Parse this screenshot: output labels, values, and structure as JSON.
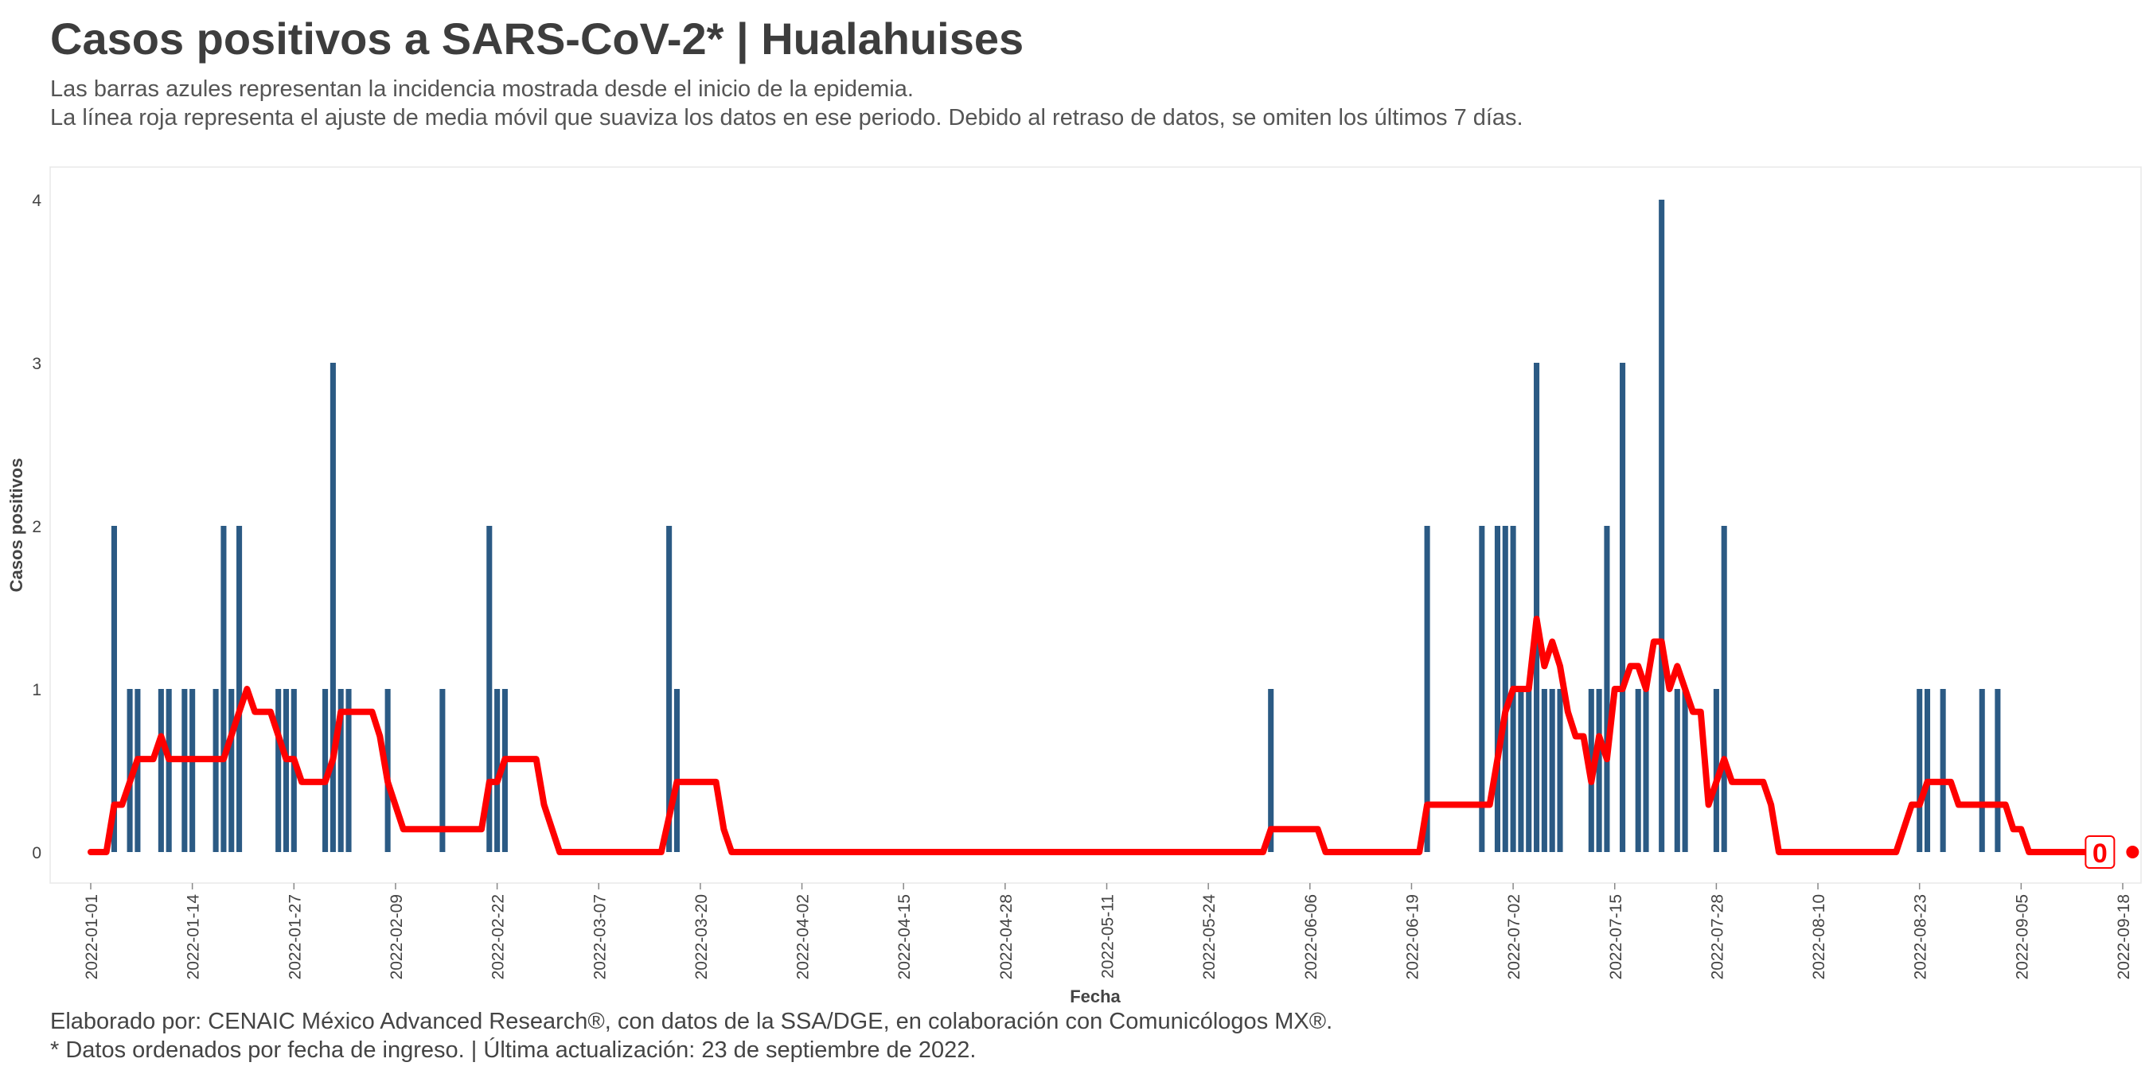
{
  "title": "Casos positivos a SARS-CoV-2* | Hualahuises",
  "subtitle_line1": "Las barras azules representan la incidencia mostrada desde el inicio de la epidemia.",
  "subtitle_line2": "La línea roja representa el ajuste de media móvil que suaviza los datos en ese periodo. Debido al retraso de datos, se omiten los últimos 7 días.",
  "caption_line1": "Elaborado por: CENAIC México Advanced Research®, con datos de la SSA/DGE, en colaboración con Comunicólogos MX®.",
  "caption_line2": "* Datos ordenados por fecha de ingreso. | Última actualización: 23 de septiembre de 2022.",
  "colors": {
    "bar": "#2b5a84",
    "line": "#ff0000",
    "text": "#444444",
    "title": "#3d3d3d"
  },
  "chart_data": {
    "type": "bar",
    "xlabel": "Fecha",
    "ylabel": "Casos positivos",
    "x_range": [
      "2022-01-01",
      "2022-09-18"
    ],
    "ylim": [
      -0.2,
      4.2
    ],
    "yticks": [
      0,
      1,
      2,
      3,
      4
    ],
    "xticks": [
      "2022-01-01",
      "2022-01-14",
      "2022-01-27",
      "2022-02-09",
      "2022-02-22",
      "2022-03-07",
      "2022-03-20",
      "2022-04-02",
      "2022-04-15",
      "2022-04-28",
      "2022-05-11",
      "2022-05-24",
      "2022-06-06",
      "2022-06-19",
      "2022-07-02",
      "2022-07-15",
      "2022-07-28",
      "2022-08-10",
      "2022-08-23",
      "2022-09-05",
      "2022-09-18"
    ],
    "grid": false,
    "series": [
      {
        "type": "bar",
        "points": [
          [
            "2022-01-04",
            2
          ],
          [
            "2022-01-06",
            1
          ],
          [
            "2022-01-07",
            1
          ],
          [
            "2022-01-10",
            1
          ],
          [
            "2022-01-11",
            1
          ],
          [
            "2022-01-13",
            1
          ],
          [
            "2022-01-14",
            1
          ],
          [
            "2022-01-17",
            1
          ],
          [
            "2022-01-18",
            2
          ],
          [
            "2022-01-19",
            1
          ],
          [
            "2022-01-20",
            2
          ],
          [
            "2022-01-25",
            1
          ],
          [
            "2022-01-26",
            1
          ],
          [
            "2022-01-27",
            1
          ],
          [
            "2022-01-31",
            1
          ],
          [
            "2022-02-01",
            3
          ],
          [
            "2022-02-02",
            1
          ],
          [
            "2022-02-03",
            1
          ],
          [
            "2022-02-08",
            1
          ],
          [
            "2022-02-15",
            1
          ],
          [
            "2022-02-21",
            2
          ],
          [
            "2022-02-22",
            1
          ],
          [
            "2022-02-23",
            1
          ],
          [
            "2022-03-16",
            2
          ],
          [
            "2022-03-17",
            1
          ],
          [
            "2022-06-01",
            1
          ],
          [
            "2022-06-21",
            2
          ],
          [
            "2022-06-28",
            2
          ],
          [
            "2022-06-30",
            2
          ],
          [
            "2022-07-01",
            2
          ],
          [
            "2022-07-02",
            2
          ],
          [
            "2022-07-03",
            1
          ],
          [
            "2022-07-04",
            1
          ],
          [
            "2022-07-05",
            3
          ],
          [
            "2022-07-06",
            1
          ],
          [
            "2022-07-07",
            1
          ],
          [
            "2022-07-08",
            1
          ],
          [
            "2022-07-12",
            1
          ],
          [
            "2022-07-13",
            1
          ],
          [
            "2022-07-14",
            2
          ],
          [
            "2022-07-16",
            3
          ],
          [
            "2022-07-18",
            1
          ],
          [
            "2022-07-19",
            1
          ],
          [
            "2022-07-21",
            4
          ],
          [
            "2022-07-23",
            1
          ],
          [
            "2022-07-24",
            1
          ],
          [
            "2022-07-28",
            1
          ],
          [
            "2022-07-29",
            2
          ],
          [
            "2022-08-23",
            1
          ],
          [
            "2022-08-24",
            1
          ],
          [
            "2022-08-26",
            1
          ],
          [
            "2022-08-31",
            1
          ],
          [
            "2022-09-02",
            1
          ]
        ]
      },
      {
        "type": "line",
        "points": [
          [
            "2022-01-01",
            0
          ],
          [
            "2022-01-03",
            0
          ],
          [
            "2022-01-04",
            0.29
          ],
          [
            "2022-01-05",
            0.29
          ],
          [
            "2022-01-07",
            0.57
          ],
          [
            "2022-01-09",
            0.57
          ],
          [
            "2022-01-10",
            0.71
          ],
          [
            "2022-01-11",
            0.57
          ],
          [
            "2022-01-18",
            0.57
          ],
          [
            "2022-01-20",
            0.86
          ],
          [
            "2022-01-21",
            1.0
          ],
          [
            "2022-01-22",
            0.86
          ],
          [
            "2022-01-24",
            0.86
          ],
          [
            "2022-01-26",
            0.57
          ],
          [
            "2022-01-27",
            0.57
          ],
          [
            "2022-01-28",
            0.43
          ],
          [
            "2022-01-31",
            0.43
          ],
          [
            "2022-02-01",
            0.57
          ],
          [
            "2022-02-02",
            0.86
          ],
          [
            "2022-02-06",
            0.86
          ],
          [
            "2022-02-07",
            0.71
          ],
          [
            "2022-02-08",
            0.43
          ],
          [
            "2022-02-10",
            0.14
          ],
          [
            "2022-02-20",
            0.14
          ],
          [
            "2022-02-21",
            0.43
          ],
          [
            "2022-02-22",
            0.43
          ],
          [
            "2022-02-23",
            0.57
          ],
          [
            "2022-02-27",
            0.57
          ],
          [
            "2022-02-28",
            0.29
          ],
          [
            "2022-03-02",
            0.0
          ],
          [
            "2022-03-15",
            0.0
          ],
          [
            "2022-03-17",
            0.43
          ],
          [
            "2022-03-22",
            0.43
          ],
          [
            "2022-03-23",
            0.14
          ],
          [
            "2022-03-24",
            0.0
          ],
          [
            "2022-05-31",
            0.0
          ],
          [
            "2022-06-01",
            0.14
          ],
          [
            "2022-06-07",
            0.14
          ],
          [
            "2022-06-08",
            0.0
          ],
          [
            "2022-06-20",
            0.0
          ],
          [
            "2022-06-21",
            0.29
          ],
          [
            "2022-06-29",
            0.29
          ],
          [
            "2022-06-30",
            0.57
          ],
          [
            "2022-07-01",
            0.86
          ],
          [
            "2022-07-02",
            1.0
          ],
          [
            "2022-07-04",
            1.0
          ],
          [
            "2022-07-05",
            1.43
          ],
          [
            "2022-07-06",
            1.14
          ],
          [
            "2022-07-07",
            1.29
          ],
          [
            "2022-07-08",
            1.14
          ],
          [
            "2022-07-09",
            0.86
          ],
          [
            "2022-07-10",
            0.71
          ],
          [
            "2022-07-11",
            0.71
          ],
          [
            "2022-07-12",
            0.43
          ],
          [
            "2022-07-13",
            0.71
          ],
          [
            "2022-07-14",
            0.57
          ],
          [
            "2022-07-15",
            1.0
          ],
          [
            "2022-07-16",
            1.0
          ],
          [
            "2022-07-17",
            1.14
          ],
          [
            "2022-07-18",
            1.14
          ],
          [
            "2022-07-19",
            1.0
          ],
          [
            "2022-07-20",
            1.29
          ],
          [
            "2022-07-21",
            1.29
          ],
          [
            "2022-07-22",
            1.0
          ],
          [
            "2022-07-23",
            1.14
          ],
          [
            "2022-07-24",
            1.0
          ],
          [
            "2022-07-25",
            0.86
          ],
          [
            "2022-07-26",
            0.86
          ],
          [
            "2022-07-27",
            0.29
          ],
          [
            "2022-07-29",
            0.57
          ],
          [
            "2022-07-30",
            0.43
          ],
          [
            "2022-08-03",
            0.43
          ],
          [
            "2022-08-04",
            0.29
          ],
          [
            "2022-08-05",
            0.0
          ],
          [
            "2022-08-20",
            0.0
          ],
          [
            "2022-08-22",
            0.29
          ],
          [
            "2022-08-23",
            0.29
          ],
          [
            "2022-08-24",
            0.43
          ],
          [
            "2022-08-27",
            0.43
          ],
          [
            "2022-08-28",
            0.29
          ],
          [
            "2022-09-03",
            0.29
          ],
          [
            "2022-09-04",
            0.14
          ],
          [
            "2022-09-05",
            0.14
          ],
          [
            "2022-09-06",
            0.0
          ],
          [
            "2022-09-16",
            0.0
          ]
        ]
      }
    ],
    "last_point": {
      "date": "2022-09-16",
      "value": 0,
      "label": "0"
    }
  }
}
